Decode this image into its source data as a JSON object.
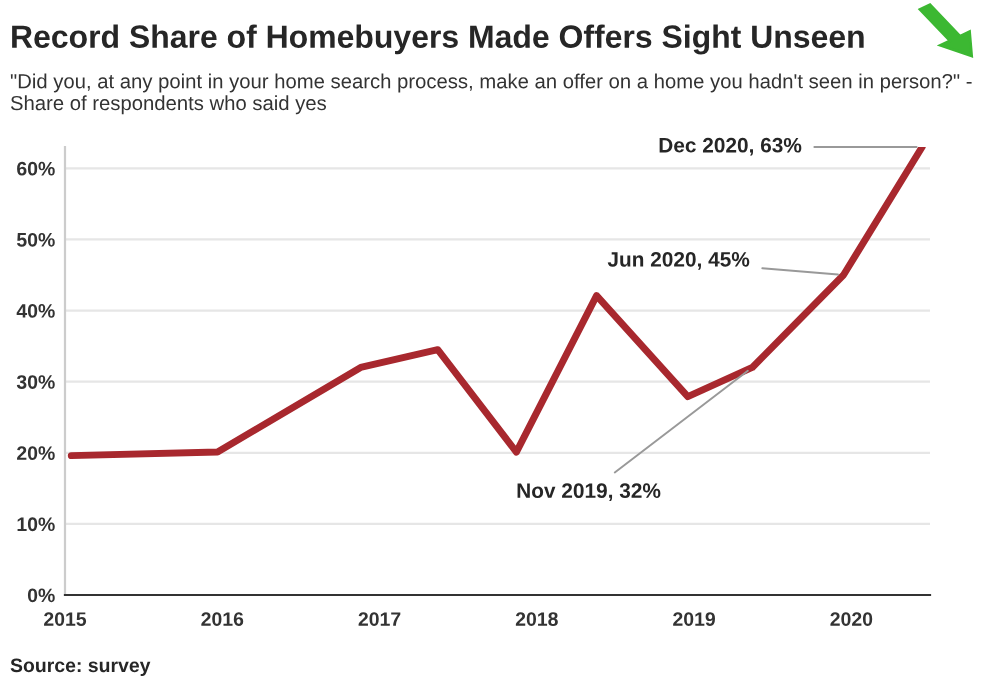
{
  "chart_data": {
    "type": "line",
    "title": "Record Share of Homebuyers Made Offers Sight Unseen",
    "subtitle": "\"Did you, at any point in your home search process, make an offer on a home you hadn't seen in person?\" - Share of respondents who said yes",
    "x": [
      2015.04,
      2015.97,
      2016.88,
      2017.37,
      2017.87,
      2018.38,
      2018.96,
      2019.37,
      2019.95,
      2020.45
    ],
    "series": [
      {
        "color": "#a8282e",
        "values": [
          19.6,
          20.1,
          32,
          34.5,
          20.1,
          42.1,
          27.9,
          32,
          45,
          63
        ]
      }
    ],
    "xlim": [
      2015,
      2020.5
    ],
    "xticks": [
      2015,
      2016,
      2017,
      2018,
      2019,
      2020
    ],
    "ylim": [
      0,
      63
    ],
    "yticks": [
      {
        "value": 0,
        "label": "0%"
      },
      {
        "value": 10,
        "label": "10%"
      },
      {
        "value": 20,
        "label": "20%"
      },
      {
        "value": 30,
        "label": "30%"
      },
      {
        "value": 40,
        "label": "40%"
      },
      {
        "value": 50,
        "label": "50%"
      },
      {
        "value": 60,
        "label": "60%"
      }
    ],
    "grid": "y",
    "marker": "none",
    "line_style": "solid",
    "annotations": [
      {
        "text": "Dec 2020, 63%",
        "x": 2020.45,
        "y": 63
      },
      {
        "text": "Jun 2020, 45%",
        "x": 2019.95,
        "y": 45
      },
      {
        "text": "Nov 2019, 32%",
        "x": 2019.37,
        "y": 32
      },
      "Source: survey"
    ]
  }
}
